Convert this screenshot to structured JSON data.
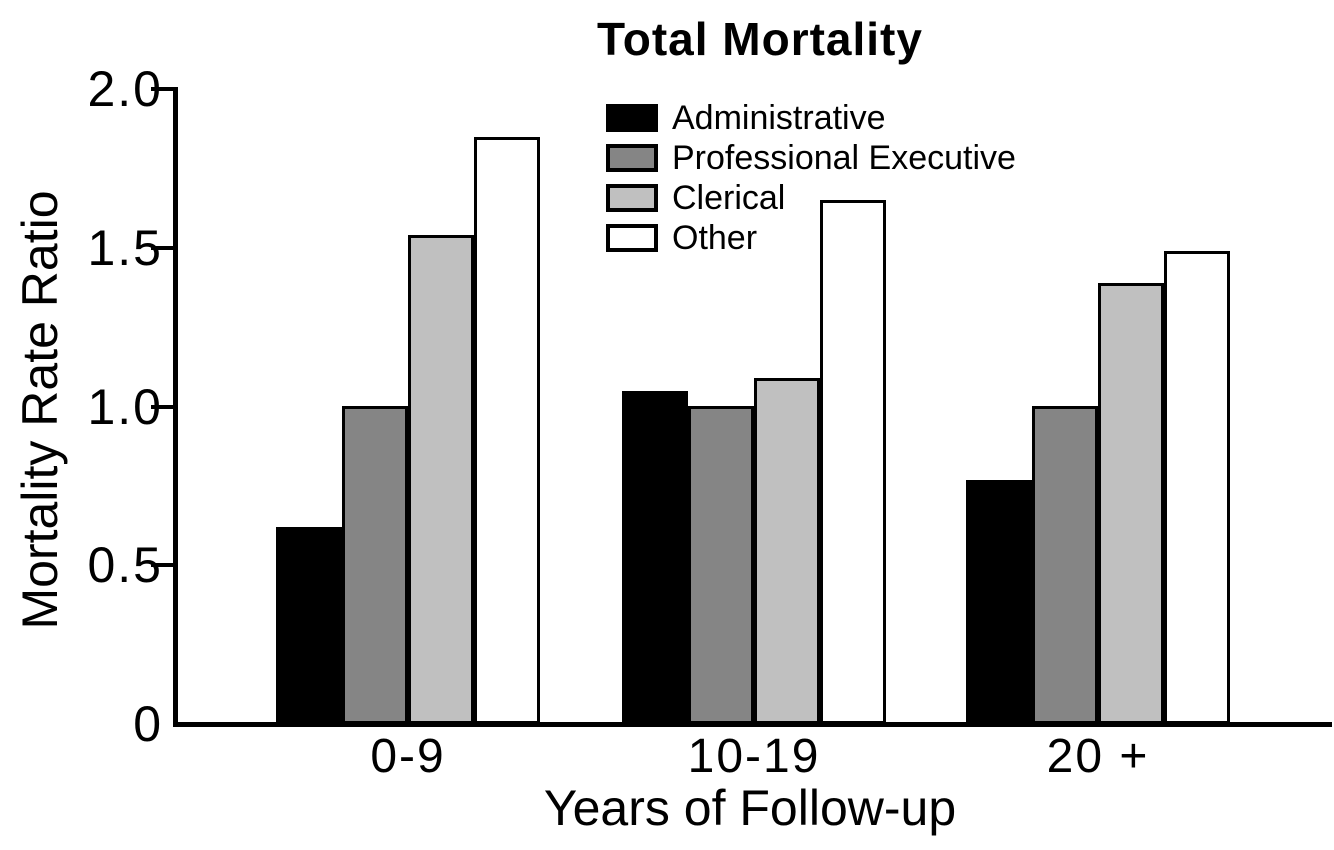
{
  "title": "Total Mortality",
  "chart_data": {
    "type": "bar",
    "title": "Total Mortality",
    "categories": [
      "0-9",
      "10-19",
      "20 +"
    ],
    "series": [
      {
        "name": "Administrative",
        "color": "#000000",
        "values": [
          0.62,
          1.05,
          0.77
        ]
      },
      {
        "name": "Professional Executive",
        "color": "#858585",
        "values": [
          1.0,
          1.0,
          1.0
        ]
      },
      {
        "name": "Clerical",
        "color": "#c0c0c0",
        "values": [
          1.54,
          1.09,
          1.39
        ]
      },
      {
        "name": "Other",
        "color": "#ffffff",
        "values": [
          1.85,
          1.65,
          1.49
        ]
      }
    ],
    "xlabel": "Years of Follow-up",
    "ylabel": "Mortality Rate Ratio",
    "ylim": [
      0,
      2.0
    ],
    "yticks": [
      0,
      0.5,
      1.0,
      1.5,
      2.0
    ],
    "ytick_labels": [
      "0",
      "0.5",
      "1.0",
      "1.5",
      "2.0"
    ],
    "grid": false,
    "legend_position": "top-center",
    "bar_border_color": "#000000",
    "axis_color": "#000000"
  }
}
